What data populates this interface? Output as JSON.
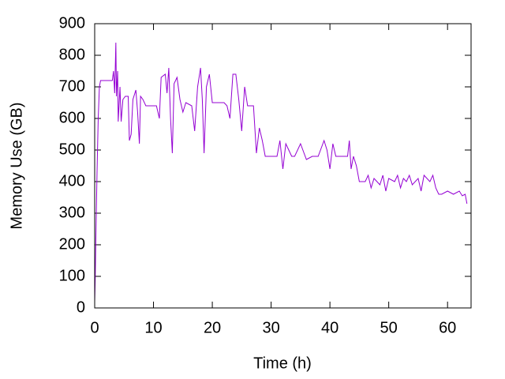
{
  "chart_data": {
    "type": "line",
    "xlabel": "Time (h)",
    "ylabel": "Memory Use (GB)",
    "xlim": [
      0,
      64
    ],
    "xticks": [
      0,
      10,
      20,
      30,
      40,
      50,
      60
    ],
    "ylim": [
      0,
      900
    ],
    "yticks": [
      0,
      100,
      200,
      300,
      400,
      500,
      600,
      700,
      800,
      900
    ],
    "grid": false,
    "x": [
      0,
      0.1,
      0.2,
      0.4,
      0.6,
      0.8,
      1,
      3,
      3.2,
      3.4,
      3.6,
      3.7,
      3.9,
      4,
      4.3,
      4.5,
      4.8,
      5.2,
      5.7,
      5.9,
      6.2,
      6.5,
      7,
      7.3,
      7.6,
      7.8,
      8.2,
      8.7,
      10.5,
      11,
      11.3,
      12,
      12.3,
      12.6,
      12.9,
      13.2,
      13.5,
      14,
      14.5,
      15,
      15.5,
      16.5,
      17,
      17.5,
      18,
      18.3,
      18.6,
      19,
      19.5,
      20,
      22,
      22.5,
      23,
      23.5,
      24,
      24.5,
      25,
      25.5,
      26,
      27,
      27.5,
      28,
      28.5,
      29,
      31,
      31.5,
      32,
      32.5,
      33,
      33.5,
      34,
      35,
      36,
      37,
      38,
      39,
      39.5,
      40,
      40.5,
      41,
      43,
      43.3,
      43.6,
      44,
      44.5,
      45,
      46,
      46.5,
      47,
      47.5,
      48,
      48.5,
      49,
      49.5,
      50,
      51,
      51.5,
      52,
      52.5,
      53,
      53.5,
      54,
      55,
      55.5,
      56,
      57,
      57.5,
      58,
      58.5,
      59,
      60,
      61,
      62,
      62.5,
      63,
      63.3
    ],
    "series": [
      {
        "name": "memory",
        "color": "#9400d3",
        "values": [
          20,
          100,
          220,
          430,
          600,
          700,
          720,
          720,
          750,
          680,
          840,
          670,
          750,
          590,
          700,
          590,
          660,
          670,
          670,
          530,
          550,
          660,
          690,
          620,
          520,
          670,
          660,
          640,
          640,
          600,
          730,
          740,
          680,
          760,
          600,
          490,
          710,
          730,
          660,
          620,
          650,
          640,
          560,
          700,
          760,
          660,
          490,
          700,
          740,
          650,
          650,
          640,
          600,
          740,
          740,
          660,
          560,
          700,
          640,
          640,
          490,
          570,
          530,
          480,
          480,
          530,
          440,
          520,
          500,
          480,
          480,
          520,
          470,
          480,
          480,
          530,
          500,
          440,
          520,
          480,
          480,
          530,
          440,
          480,
          450,
          400,
          400,
          420,
          380,
          410,
          400,
          390,
          420,
          370,
          410,
          400,
          420,
          380,
          410,
          400,
          420,
          390,
          410,
          370,
          420,
          400,
          420,
          380,
          360,
          360,
          370,
          360,
          370,
          355,
          360,
          330
        ]
      }
    ]
  }
}
